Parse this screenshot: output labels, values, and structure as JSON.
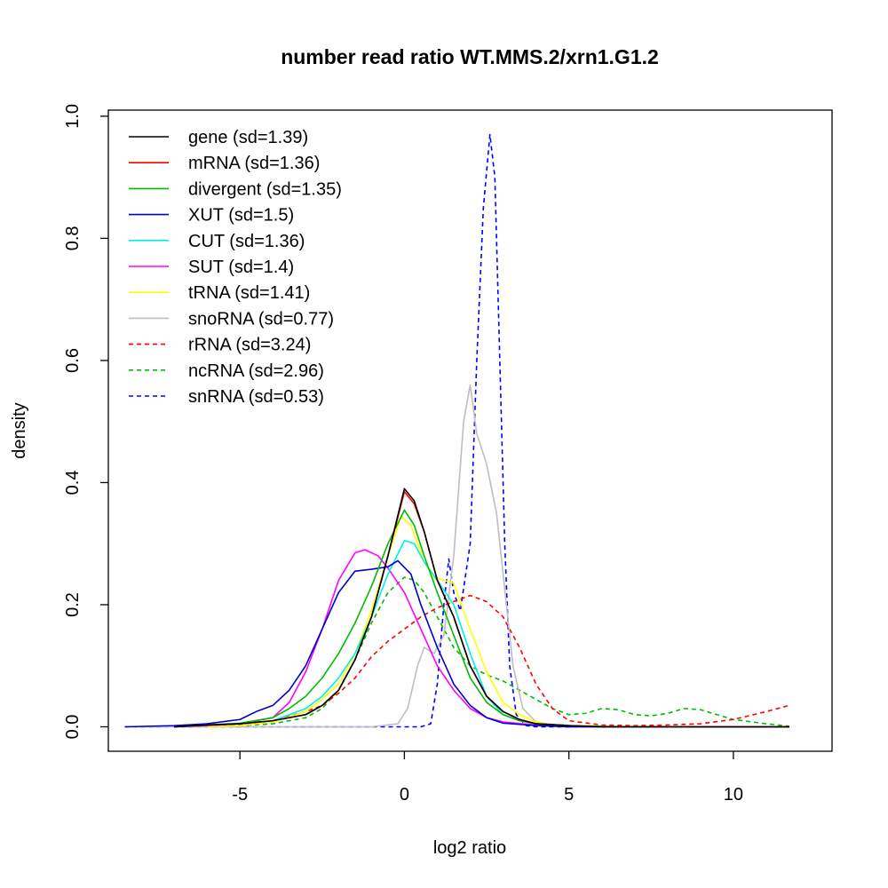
{
  "chart_data": {
    "type": "line",
    "title": "number read ratio WT.MMS.2/xrn1.G1.2",
    "xlabel": "log2 ratio",
    "ylabel": "density",
    "xlim": [
      -9,
      13
    ],
    "ylim": [
      -0.04,
      1.01
    ],
    "x_ticks": [
      -5,
      0,
      5,
      10
    ],
    "x_tick_labels": [
      "-5",
      "0",
      "5",
      "10"
    ],
    "y_ticks": [
      0.0,
      0.2,
      0.4,
      0.6,
      0.8,
      1.0
    ],
    "y_tick_labels": [
      "0.0",
      "0.2",
      "0.4",
      "0.6",
      "0.8",
      "1.0"
    ],
    "grid": false,
    "legend_position": "top-left",
    "series": [
      {
        "name": "gene (sd=1.39)",
        "color": "#000000",
        "dash": false,
        "points": [
          [
            -7,
            0
          ],
          [
            -6,
            0.003
          ],
          [
            -5,
            0.005
          ],
          [
            -4,
            0.01
          ],
          [
            -3,
            0.02
          ],
          [
            -2.5,
            0.035
          ],
          [
            -2,
            0.06
          ],
          [
            -1.5,
            0.11
          ],
          [
            -1,
            0.18
          ],
          [
            -0.5,
            0.28
          ],
          [
            0,
            0.39
          ],
          [
            0.3,
            0.37
          ],
          [
            0.6,
            0.32
          ],
          [
            1,
            0.24
          ],
          [
            1.5,
            0.18
          ],
          [
            2,
            0.1
          ],
          [
            2.5,
            0.05
          ],
          [
            3,
            0.025
          ],
          [
            3.5,
            0.012
          ],
          [
            4,
            0.005
          ],
          [
            5,
            0.002
          ],
          [
            6,
            0
          ],
          [
            8,
            0
          ],
          [
            11.7,
            0
          ]
        ]
      },
      {
        "name": "mRNA (sd=1.36)",
        "color": "#ff0000",
        "dash": false,
        "points": [
          [
            -7,
            0
          ],
          [
            -6,
            0.003
          ],
          [
            -5,
            0.005
          ],
          [
            -4,
            0.01
          ],
          [
            -3,
            0.02
          ],
          [
            -2.5,
            0.035
          ],
          [
            -2,
            0.06
          ],
          [
            -1.5,
            0.11
          ],
          [
            -1,
            0.18
          ],
          [
            -0.5,
            0.28
          ],
          [
            0,
            0.385
          ],
          [
            0.3,
            0.365
          ],
          [
            0.6,
            0.32
          ],
          [
            1,
            0.24
          ],
          [
            1.5,
            0.18
          ],
          [
            2,
            0.1
          ],
          [
            2.5,
            0.05
          ],
          [
            3,
            0.025
          ],
          [
            3.5,
            0.012
          ],
          [
            4,
            0.005
          ],
          [
            5,
            0.002
          ],
          [
            6,
            0
          ],
          [
            8,
            0
          ],
          [
            11.7,
            0
          ]
        ]
      },
      {
        "name": "divergent (sd=1.35)",
        "color": "#00bb00",
        "dash": false,
        "points": [
          [
            -7,
            0
          ],
          [
            -6,
            0.003
          ],
          [
            -5,
            0.006
          ],
          [
            -4,
            0.015
          ],
          [
            -3.5,
            0.03
          ],
          [
            -3,
            0.05
          ],
          [
            -2.5,
            0.08
          ],
          [
            -2,
            0.12
          ],
          [
            -1.5,
            0.17
          ],
          [
            -1,
            0.23
          ],
          [
            -0.5,
            0.3
          ],
          [
            0,
            0.355
          ],
          [
            0.3,
            0.33
          ],
          [
            0.6,
            0.28
          ],
          [
            1,
            0.22
          ],
          [
            1.5,
            0.15
          ],
          [
            2,
            0.08
          ],
          [
            2.5,
            0.04
          ],
          [
            3,
            0.02
          ],
          [
            3.5,
            0.01
          ],
          [
            4,
            0.005
          ],
          [
            5,
            0.002
          ],
          [
            7,
            0
          ],
          [
            11.7,
            0
          ]
        ]
      },
      {
        "name": "XUT (sd=1.5)",
        "color": "#0000cc",
        "dash": false,
        "points": [
          [
            -8.5,
            0
          ],
          [
            -7,
            0.002
          ],
          [
            -6,
            0.005
          ],
          [
            -5,
            0.012
          ],
          [
            -4.5,
            0.025
          ],
          [
            -4,
            0.035
          ],
          [
            -3.5,
            0.06
          ],
          [
            -3,
            0.1
          ],
          [
            -2.5,
            0.16
          ],
          [
            -2,
            0.22
          ],
          [
            -1.5,
            0.255
          ],
          [
            -1,
            0.258
          ],
          [
            -0.5,
            0.262
          ],
          [
            -0.2,
            0.272
          ],
          [
            0.2,
            0.25
          ],
          [
            0.5,
            0.2
          ],
          [
            1,
            0.13
          ],
          [
            1.5,
            0.07
          ],
          [
            2,
            0.035
          ],
          [
            2.5,
            0.015
          ],
          [
            3,
            0.006
          ],
          [
            4,
            0.002
          ],
          [
            5,
            0
          ],
          [
            8,
            0
          ],
          [
            11.7,
            0
          ]
        ]
      },
      {
        "name": "CUT (sd=1.36)",
        "color": "#00eeee",
        "dash": false,
        "points": [
          [
            -7,
            0
          ],
          [
            -6,
            0.003
          ],
          [
            -5,
            0.005
          ],
          [
            -4,
            0.01
          ],
          [
            -3,
            0.03
          ],
          [
            -2.5,
            0.05
          ],
          [
            -2,
            0.08
          ],
          [
            -1.5,
            0.12
          ],
          [
            -1,
            0.18
          ],
          [
            -0.5,
            0.25
          ],
          [
            0,
            0.305
          ],
          [
            0.3,
            0.3
          ],
          [
            0.6,
            0.27
          ],
          [
            1,
            0.24
          ],
          [
            1.5,
            0.2
          ],
          [
            2,
            0.12
          ],
          [
            2.5,
            0.05
          ],
          [
            3,
            0.02
          ],
          [
            3.5,
            0.01
          ],
          [
            4,
            0.005
          ],
          [
            5,
            0.002
          ],
          [
            6,
            0
          ],
          [
            11.7,
            0
          ]
        ]
      },
      {
        "name": "SUT (sd=1.4)",
        "color": "#ff00ff",
        "dash": false,
        "points": [
          [
            -7,
            0
          ],
          [
            -6,
            0.002
          ],
          [
            -5,
            0.005
          ],
          [
            -4,
            0.015
          ],
          [
            -3.5,
            0.04
          ],
          [
            -3,
            0.09
          ],
          [
            -2.5,
            0.16
          ],
          [
            -2,
            0.24
          ],
          [
            -1.5,
            0.285
          ],
          [
            -1.2,
            0.29
          ],
          [
            -0.8,
            0.28
          ],
          [
            -0.5,
            0.26
          ],
          [
            0,
            0.22
          ],
          [
            0.5,
            0.16
          ],
          [
            1,
            0.1
          ],
          [
            1.5,
            0.06
          ],
          [
            2,
            0.03
          ],
          [
            2.5,
            0.015
          ],
          [
            3,
            0.008
          ],
          [
            4,
            0.003
          ],
          [
            5,
            0.001
          ],
          [
            6,
            0
          ],
          [
            11.7,
            0
          ]
        ]
      },
      {
        "name": "tRNA (sd=1.41)",
        "color": "#ffff00",
        "dash": false,
        "points": [
          [
            -6,
            0
          ],
          [
            -5,
            0.002
          ],
          [
            -4,
            0.008
          ],
          [
            -3,
            0.025
          ],
          [
            -2.5,
            0.045
          ],
          [
            -2,
            0.07
          ],
          [
            -1.5,
            0.12
          ],
          [
            -1,
            0.19
          ],
          [
            -0.5,
            0.28
          ],
          [
            -0.1,
            0.345
          ],
          [
            0.2,
            0.33
          ],
          [
            0.6,
            0.27
          ],
          [
            0.9,
            0.245
          ],
          [
            1.5,
            0.235
          ],
          [
            2,
            0.16
          ],
          [
            2.5,
            0.09
          ],
          [
            3,
            0.04
          ],
          [
            3.5,
            0.02
          ],
          [
            4,
            0.008
          ],
          [
            4.5,
            0.003
          ],
          [
            5,
            0.001
          ],
          [
            6,
            0
          ],
          [
            11.7,
            0
          ]
        ]
      },
      {
        "name": "snoRNA (sd=0.77)",
        "color": "#bebebe",
        "dash": false,
        "points": [
          [
            -8.5,
            0
          ],
          [
            -1,
            0
          ],
          [
            -0.2,
            0.005
          ],
          [
            0.1,
            0.03
          ],
          [
            0.4,
            0.1
          ],
          [
            0.6,
            0.13
          ],
          [
            0.9,
            0.12
          ],
          [
            1.2,
            0.15
          ],
          [
            1.5,
            0.28
          ],
          [
            1.8,
            0.5
          ],
          [
            2,
            0.56
          ],
          [
            2.2,
            0.48
          ],
          [
            2.5,
            0.43
          ],
          [
            2.8,
            0.35
          ],
          [
            3,
            0.25
          ],
          [
            3.3,
            0.1
          ],
          [
            3.6,
            0.03
          ],
          [
            4,
            0.008
          ],
          [
            5,
            0
          ],
          [
            11.7,
            0
          ]
        ]
      },
      {
        "name": "rRNA (sd=3.24)",
        "color": "#ff0000",
        "dash": true,
        "points": [
          [
            -7,
            0
          ],
          [
            -6,
            0.002
          ],
          [
            -5,
            0.004
          ],
          [
            -4,
            0.01
          ],
          [
            -3,
            0.025
          ],
          [
            -2.5,
            0.035
          ],
          [
            -2,
            0.055
          ],
          [
            -1.5,
            0.08
          ],
          [
            -1,
            0.115
          ],
          [
            -0.5,
            0.14
          ],
          [
            0,
            0.16
          ],
          [
            0.5,
            0.18
          ],
          [
            1,
            0.195
          ],
          [
            1.5,
            0.205
          ],
          [
            2,
            0.215
          ],
          [
            2.5,
            0.205
          ],
          [
            3,
            0.18
          ],
          [
            3.5,
            0.13
          ],
          [
            4,
            0.07
          ],
          [
            4.5,
            0.03
          ],
          [
            5,
            0.01
          ],
          [
            6,
            0.003
          ],
          [
            7,
            0.002
          ],
          [
            8,
            0.003
          ],
          [
            9,
            0.005
          ],
          [
            10,
            0.012
          ],
          [
            11,
            0.025
          ],
          [
            11.7,
            0.035
          ]
        ]
      },
      {
        "name": "ncRNA (sd=2.96)",
        "color": "#00bb00",
        "dash": true,
        "points": [
          [
            -6,
            0
          ],
          [
            -5,
            0.002
          ],
          [
            -4,
            0.005
          ],
          [
            -3,
            0.015
          ],
          [
            -2.5,
            0.03
          ],
          [
            -2,
            0.06
          ],
          [
            -1.5,
            0.11
          ],
          [
            -1,
            0.17
          ],
          [
            -0.5,
            0.22
          ],
          [
            0,
            0.245
          ],
          [
            0.3,
            0.24
          ],
          [
            0.6,
            0.22
          ],
          [
            1,
            0.18
          ],
          [
            1.5,
            0.13
          ],
          [
            2,
            0.1
          ],
          [
            2.5,
            0.085
          ],
          [
            3,
            0.075
          ],
          [
            3.5,
            0.06
          ],
          [
            4,
            0.045
          ],
          [
            4.5,
            0.03
          ],
          [
            5,
            0.02
          ],
          [
            5.5,
            0.022
          ],
          [
            6,
            0.03
          ],
          [
            6.5,
            0.028
          ],
          [
            7,
            0.02
          ],
          [
            7.5,
            0.018
          ],
          [
            8,
            0.022
          ],
          [
            8.5,
            0.03
          ],
          [
            9,
            0.028
          ],
          [
            9.5,
            0.02
          ],
          [
            10,
            0.012
          ],
          [
            11,
            0.005
          ],
          [
            11.7,
            0.001
          ]
        ]
      },
      {
        "name": "snRNA (sd=0.53)",
        "color": "#0000ff",
        "dash": true,
        "points": [
          [
            -8.5,
            0
          ],
          [
            0.5,
            0
          ],
          [
            0.8,
            0.005
          ],
          [
            1,
            0.07
          ],
          [
            1.2,
            0.2
          ],
          [
            1.35,
            0.275
          ],
          [
            1.5,
            0.22
          ],
          [
            1.7,
            0.19
          ],
          [
            2,
            0.3
          ],
          [
            2.2,
            0.6
          ],
          [
            2.4,
            0.85
          ],
          [
            2.6,
            0.97
          ],
          [
            2.75,
            0.9
          ],
          [
            2.9,
            0.6
          ],
          [
            3.05,
            0.3
          ],
          [
            3.2,
            0.1
          ],
          [
            3.4,
            0.02
          ],
          [
            3.7,
            0.002
          ],
          [
            4,
            0
          ],
          [
            11.7,
            0
          ]
        ]
      }
    ]
  }
}
